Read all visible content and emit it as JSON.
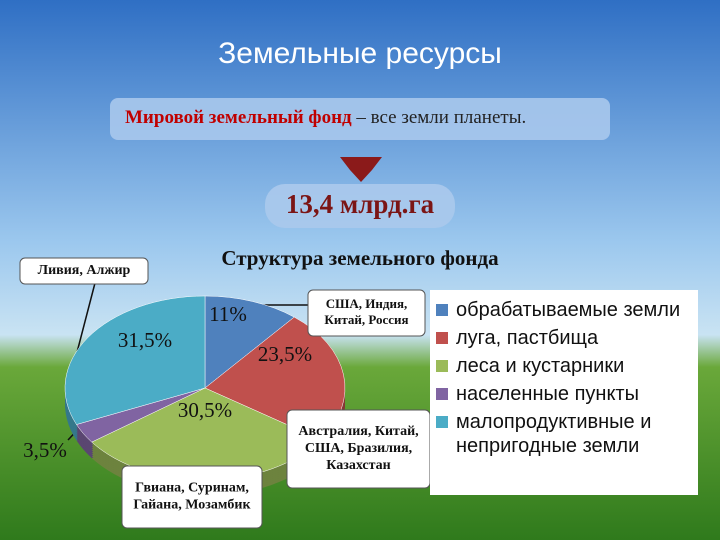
{
  "chart_data": {
    "type": "pie",
    "title": "Структура земельного фонда",
    "slide_title": "Земельные ресурсы",
    "definition": {
      "term": "Мировой земельный фонд",
      "text": " – все земли планеты."
    },
    "total": "13,4 млрд.га",
    "categories": [
      "обрабатываемые земли",
      "луга, пастбища",
      "леса и кустарники",
      "населенные пункты",
      "малопродуктивные и непригодные земли"
    ],
    "values": [
      11,
      23.5,
      30.5,
      3.5,
      31.5
    ],
    "value_labels": [
      "11%",
      "23,5%",
      "30,5%",
      "3,5%",
      "31,5%"
    ],
    "colors": [
      "#4f81bd",
      "#c0504d",
      "#9bbb59",
      "#8064a2",
      "#4bacc6"
    ],
    "annotations": [
      {
        "lines": [
          "Ливия, Алжир"
        ]
      },
      {
        "lines": [
          "США, Индия,",
          "Китай, Россия"
        ]
      },
      {
        "lines": [
          "Австралия, Китай,",
          "США, Бразилия,",
          "Казахстан"
        ]
      },
      {
        "lines": [
          "Гвиана, Суринам,",
          "Гайана, Мозамбик"
        ]
      }
    ]
  }
}
